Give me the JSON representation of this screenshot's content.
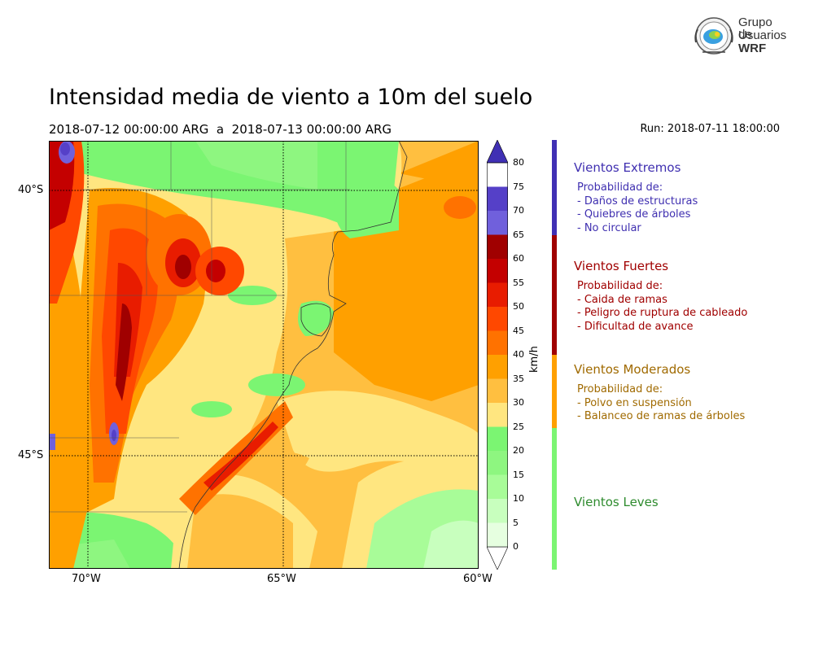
{
  "header": {
    "title": "Intensidad media de viento a 10m del suelo",
    "period": "2018-07-12 00:00:00 ARG  a  2018-07-13 00:00:00 ARG",
    "run": "Run: 2018-07-11 18:00:00"
  },
  "logo": {
    "line1": "Grupo de",
    "line2": "Usuarios",
    "line3": "WRF"
  },
  "map": {
    "lat_labels": [
      "40°S",
      "45°S"
    ],
    "lon_labels": [
      "70°W",
      "65°W",
      "60°W"
    ],
    "lon_range": [
      -71,
      -60
    ],
    "lat_range": [
      -48.2,
      -38.8
    ]
  },
  "colorbar": {
    "unit": "km/h",
    "ticks": [
      "0",
      "5",
      "10",
      "15",
      "20",
      "25",
      "30",
      "35",
      "40",
      "45",
      "50",
      "55",
      "60",
      "65",
      "70",
      "75",
      "80"
    ],
    "colors": [
      "#ffffff",
      "#e6ffe0",
      "#c8ffbe",
      "#a8fc98",
      "#8ef680",
      "#7bf572",
      "#ffe680",
      "#ffbf40",
      "#ffa000",
      "#ff7200",
      "#ff4800",
      "#e81c00",
      "#c40000",
      "#a00000",
      "#7060dc",
      "#5540c8",
      "#4030b4"
    ]
  },
  "legend": {
    "bar_colors": [
      "#4030b4",
      "#a00000",
      "#ffa000",
      "#7bf572"
    ],
    "categories": [
      {
        "name": "Vientos Extremos",
        "color": "#3f2fb0",
        "prob": "Probabilidad de:",
        "items": [
          "- Daños de estructuras",
          "- Quiebres de árboles",
          "- No circular"
        ]
      },
      {
        "name": "Vientos Fuertes",
        "color": "#a00000",
        "prob": "Probabilidad de:",
        "items": [
          "- Caida de ramas",
          "- Peligro de ruptura de cableado",
          "- Dificultad de avance"
        ]
      },
      {
        "name": "Vientos Moderados",
        "color": "#a06a00",
        "prob": "Probabilidad de:",
        "items": [
          "- Polvo en suspensión",
          "- Balanceo de ramas de árboles"
        ]
      },
      {
        "name": "Vientos Leves",
        "color": "#2e8b2e",
        "prob": "",
        "items": []
      }
    ]
  }
}
